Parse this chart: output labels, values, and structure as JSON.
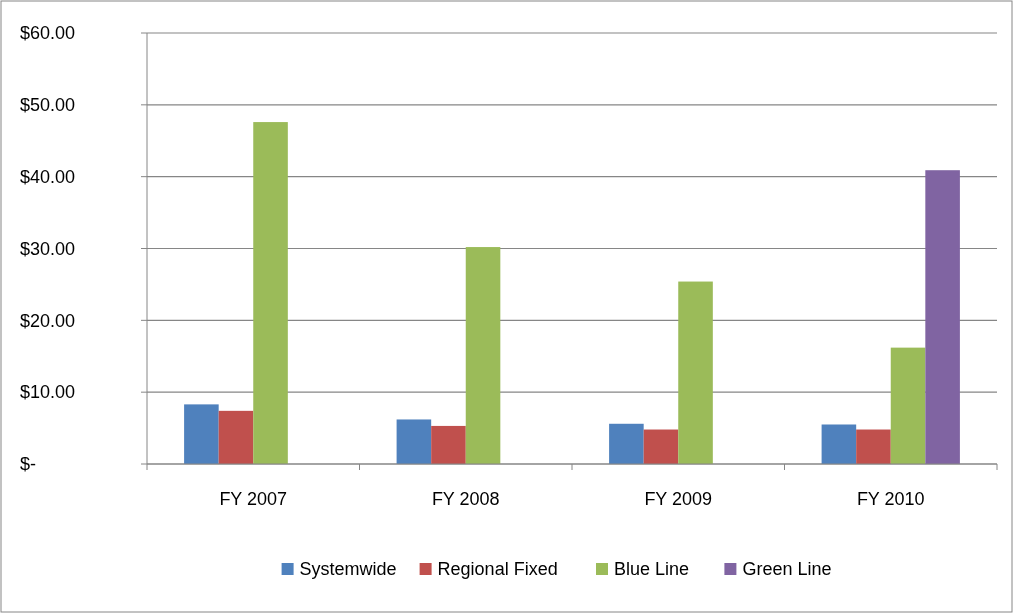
{
  "chart_data": {
    "type": "bar",
    "categories": [
      "FY 2007",
      "FY 2008",
      "FY 2009",
      "FY 2010"
    ],
    "series": [
      {
        "name": "Systemwide",
        "color": "#4f81bd",
        "values": [
          8.3,
          6.2,
          5.6,
          5.5
        ]
      },
      {
        "name": "Regional Fixed",
        "color": "#c0504d",
        "values": [
          7.4,
          5.3,
          4.8,
          4.8
        ]
      },
      {
        "name": "Blue Line",
        "color": "#9bbb59",
        "values": [
          47.6,
          30.2,
          25.4,
          16.2
        ]
      },
      {
        "name": "Green Line",
        "color": "#8064a2",
        "values": [
          null,
          null,
          null,
          40.9
        ]
      }
    ],
    "ylim": [
      0,
      60
    ],
    "yticks": [
      {
        "value": 0,
        "label": "$-"
      },
      {
        "value": 10,
        "label": "$10.00"
      },
      {
        "value": 20,
        "label": "$20.00"
      },
      {
        "value": 30,
        "label": "$30.00"
      },
      {
        "value": 40,
        "label": "$40.00"
      },
      {
        "value": 50,
        "label": "$50.00"
      },
      {
        "value": 60,
        "label": "$60.00"
      }
    ],
    "grid": "y",
    "legend": "bottom"
  }
}
